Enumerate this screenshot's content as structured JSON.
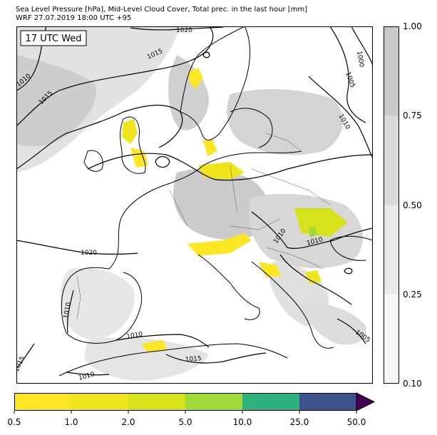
{
  "header": {
    "title_line1": "Sea Level Pressure [hPa], Mid-Level Cloud Cover, Total prec. in the last hour [mm]",
    "title_line2": "WRF 27.07.2019 18:00 UTC +95"
  },
  "map": {
    "time_box": "17 UTC Wed",
    "isobar_labels": [
      "1020",
      "1015",
      "1010",
      "1015",
      "1000",
      "1005",
      "1010",
      "1020",
      "1010",
      "1010",
      "1010",
      "1010",
      "1015",
      "1015",
      "1010",
      "1005"
    ]
  },
  "cloud_colorbar": {
    "levels": [
      0.1,
      0.25,
      0.5,
      0.75,
      1.0
    ],
    "tick_labels": [
      "1.00",
      "0.75",
      "0.50",
      "0.25",
      "0.10"
    ],
    "colors": [
      "#f7f7f7",
      "#e9e9e9",
      "#d9d9d9",
      "#c8c8c8"
    ]
  },
  "precip_colorbar": {
    "levels": [
      0.5,
      1.0,
      2.0,
      5.0,
      10.0,
      25.0,
      50.0
    ],
    "tick_labels": [
      "0.5",
      "1.0",
      "2.0",
      "5.0",
      "10.0",
      "25.0",
      "50.0"
    ],
    "colors": [
      "#fde725",
      "#eee51c",
      "#d5e21a",
      "#a0da39",
      "#2db27d",
      "#3b528b",
      "#440154"
    ],
    "extend": "max"
  },
  "colors": {
    "land_edge": "#000000",
    "border": "#555555",
    "cloud_light": "#e2e2e2",
    "cloud_dark": "#c6c6c6",
    "precip_light": "#fde725",
    "precip_mid": "#a0da39"
  }
}
